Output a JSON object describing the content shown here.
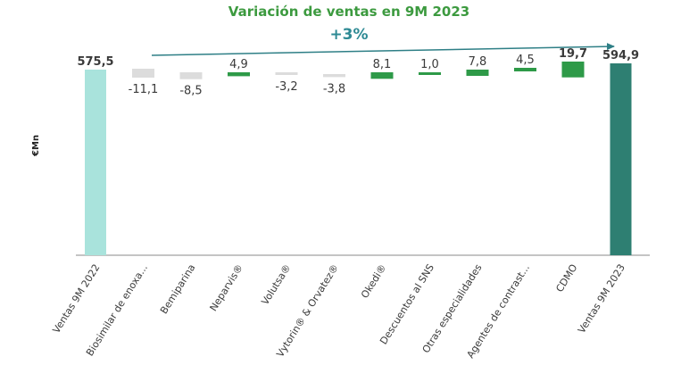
{
  "chart_data": {
    "type": "bar",
    "subtype": "waterfall",
    "title": "Variación de ventas en 9M 2023",
    "annotation": "+3%",
    "ylabel": "€Mn",
    "ylim": [
      0,
      600
    ],
    "grid": false,
    "legend": "none",
    "categories": [
      "Ventas 9M 2022",
      "Biosimilar de enoxa...",
      "Bemiparina",
      "Neparvis®",
      "Volutsa®",
      "Vytorin® & Orvatez®",
      "Okedi®",
      "Descuentos al SNS",
      "Otras especialidades",
      "Agentes de contrast...",
      "CDMO",
      "Ventas 9M 2023"
    ],
    "values": [
      575.5,
      -11.1,
      -8.5,
      4.9,
      -3.2,
      -3.8,
      8.1,
      1.0,
      7.8,
      4.5,
      19.7,
      594.9
    ],
    "labels": [
      "575,5",
      "-11,1",
      "-8,5",
      "4,9",
      "-3,2",
      "-3,8",
      "8,1",
      "1,0",
      "7,8",
      "4,5",
      "19,7",
      "594,9"
    ],
    "kinds": [
      "total",
      "delta",
      "delta",
      "delta",
      "delta",
      "delta",
      "delta",
      "delta",
      "delta",
      "delta",
      "delta",
      "total"
    ],
    "colors": {
      "title": "#3c9a3f",
      "annotation": "#2e8a94",
      "arrow": "#2e7f86",
      "start_total": "#a9e3dc",
      "end_total": "#2e7f72",
      "positive": "#2e9a48",
      "negative": "#dcdcdc",
      "axis": "#8a8a8a"
    }
  }
}
